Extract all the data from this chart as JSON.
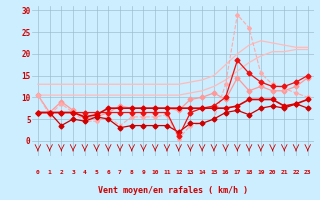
{
  "x": [
    0,
    1,
    2,
    3,
    4,
    5,
    6,
    7,
    8,
    9,
    10,
    11,
    12,
    13,
    14,
    15,
    16,
    17,
    18,
    19,
    20,
    21,
    22,
    23
  ],
  "series": [
    {
      "name": "diag_upper_light",
      "color": "#ffbbbb",
      "lw": 0.9,
      "linestyle": "-",
      "marker": null,
      "ms": 0,
      "y": [
        13.0,
        13.0,
        13.0,
        13.0,
        13.0,
        13.0,
        13.0,
        13.0,
        13.0,
        13.0,
        13.0,
        13.0,
        13.0,
        13.5,
        14.0,
        15.0,
        17.5,
        20.0,
        22.0,
        23.0,
        22.5,
        22.0,
        21.5,
        21.5
      ]
    },
    {
      "name": "diag_lower_light",
      "color": "#ffbbbb",
      "lw": 0.9,
      "linestyle": "-",
      "marker": null,
      "ms": 0,
      "y": [
        10.5,
        10.5,
        10.5,
        10.5,
        10.5,
        10.5,
        10.5,
        10.5,
        10.5,
        10.5,
        10.5,
        10.5,
        10.5,
        11.0,
        11.5,
        12.5,
        14.0,
        16.0,
        18.0,
        19.5,
        20.5,
        20.5,
        21.0,
        21.0
      ]
    },
    {
      "name": "line_pink_with_markers",
      "color": "#ff9999",
      "lw": 0.9,
      "linestyle": "-",
      "marker": "D",
      "ms": 2.5,
      "y": [
        10.5,
        6.5,
        9.0,
        7.0,
        5.0,
        5.5,
        6.5,
        8.0,
        7.5,
        7.5,
        7.5,
        7.5,
        7.0,
        9.5,
        10.0,
        11.0,
        9.5,
        14.5,
        11.5,
        12.5,
        11.5,
        11.5,
        12.5,
        14.5
      ]
    },
    {
      "name": "line_dashed_pink_high",
      "color": "#ffaaaa",
      "lw": 0.8,
      "linestyle": "--",
      "marker": "D",
      "ms": 2.0,
      "y": [
        10.5,
        6.0,
        8.5,
        6.5,
        4.5,
        4.5,
        5.5,
        3.5,
        5.5,
        5.5,
        5.5,
        6.0,
        0.5,
        3.5,
        4.0,
        5.0,
        13.0,
        29.0,
        26.0,
        15.5,
        13.0,
        12.0,
        11.0,
        10.0
      ]
    },
    {
      "name": "line_red_low",
      "color": "#cc0000",
      "lw": 0.9,
      "linestyle": "-",
      "marker": "D",
      "ms": 2.5,
      "y": [
        6.5,
        6.5,
        3.5,
        5.0,
        4.5,
        5.5,
        5.0,
        3.0,
        3.5,
        3.5,
        3.5,
        3.5,
        2.0,
        4.0,
        4.0,
        5.0,
        6.5,
        7.0,
        6.0,
        7.5,
        8.0,
        7.5,
        8.5,
        7.5
      ]
    },
    {
      "name": "line_red_mid1",
      "color": "#ee1111",
      "lw": 0.9,
      "linestyle": "-",
      "marker": "D",
      "ms": 2.5,
      "y": [
        6.5,
        6.5,
        6.5,
        6.5,
        6.5,
        6.5,
        6.5,
        6.5,
        6.5,
        6.5,
        6.5,
        6.5,
        1.0,
        6.5,
        7.5,
        8.0,
        10.0,
        18.5,
        15.5,
        13.5,
        12.5,
        12.5,
        13.5,
        15.0
      ]
    },
    {
      "name": "line_red_main",
      "color": "#dd0000",
      "lw": 1.2,
      "linestyle": "-",
      "marker": "D",
      "ms": 2.5,
      "y": [
        6.5,
        6.5,
        6.5,
        6.5,
        5.5,
        6.0,
        7.5,
        7.5,
        7.5,
        7.5,
        7.5,
        7.5,
        7.5,
        7.5,
        7.5,
        7.5,
        7.5,
        8.0,
        9.5,
        9.5,
        9.5,
        8.0,
        8.5,
        9.5
      ]
    }
  ],
  "wind_symbols_x": [
    0,
    1,
    2,
    3,
    4,
    5,
    6,
    7,
    8,
    9,
    10,
    11,
    12,
    13,
    14,
    15,
    16,
    17,
    18,
    19,
    20,
    21,
    22,
    23
  ],
  "xlabel": "Vent moyen/en rafales ( km/h )",
  "xlim": [
    -0.5,
    23.5
  ],
  "ylim": [
    -3.5,
    31
  ],
  "plot_ylim": [
    0,
    31
  ],
  "yticks": [
    0,
    5,
    10,
    15,
    20,
    25,
    30
  ],
  "xticks": [
    0,
    1,
    2,
    3,
    4,
    5,
    6,
    7,
    8,
    9,
    10,
    11,
    12,
    13,
    14,
    15,
    16,
    17,
    18,
    19,
    20,
    21,
    22,
    23
  ],
  "bg_color": "#cceeff",
  "grid_color": "#99bbcc",
  "text_color": "#cc0000",
  "arrow_color": "#cc0000"
}
